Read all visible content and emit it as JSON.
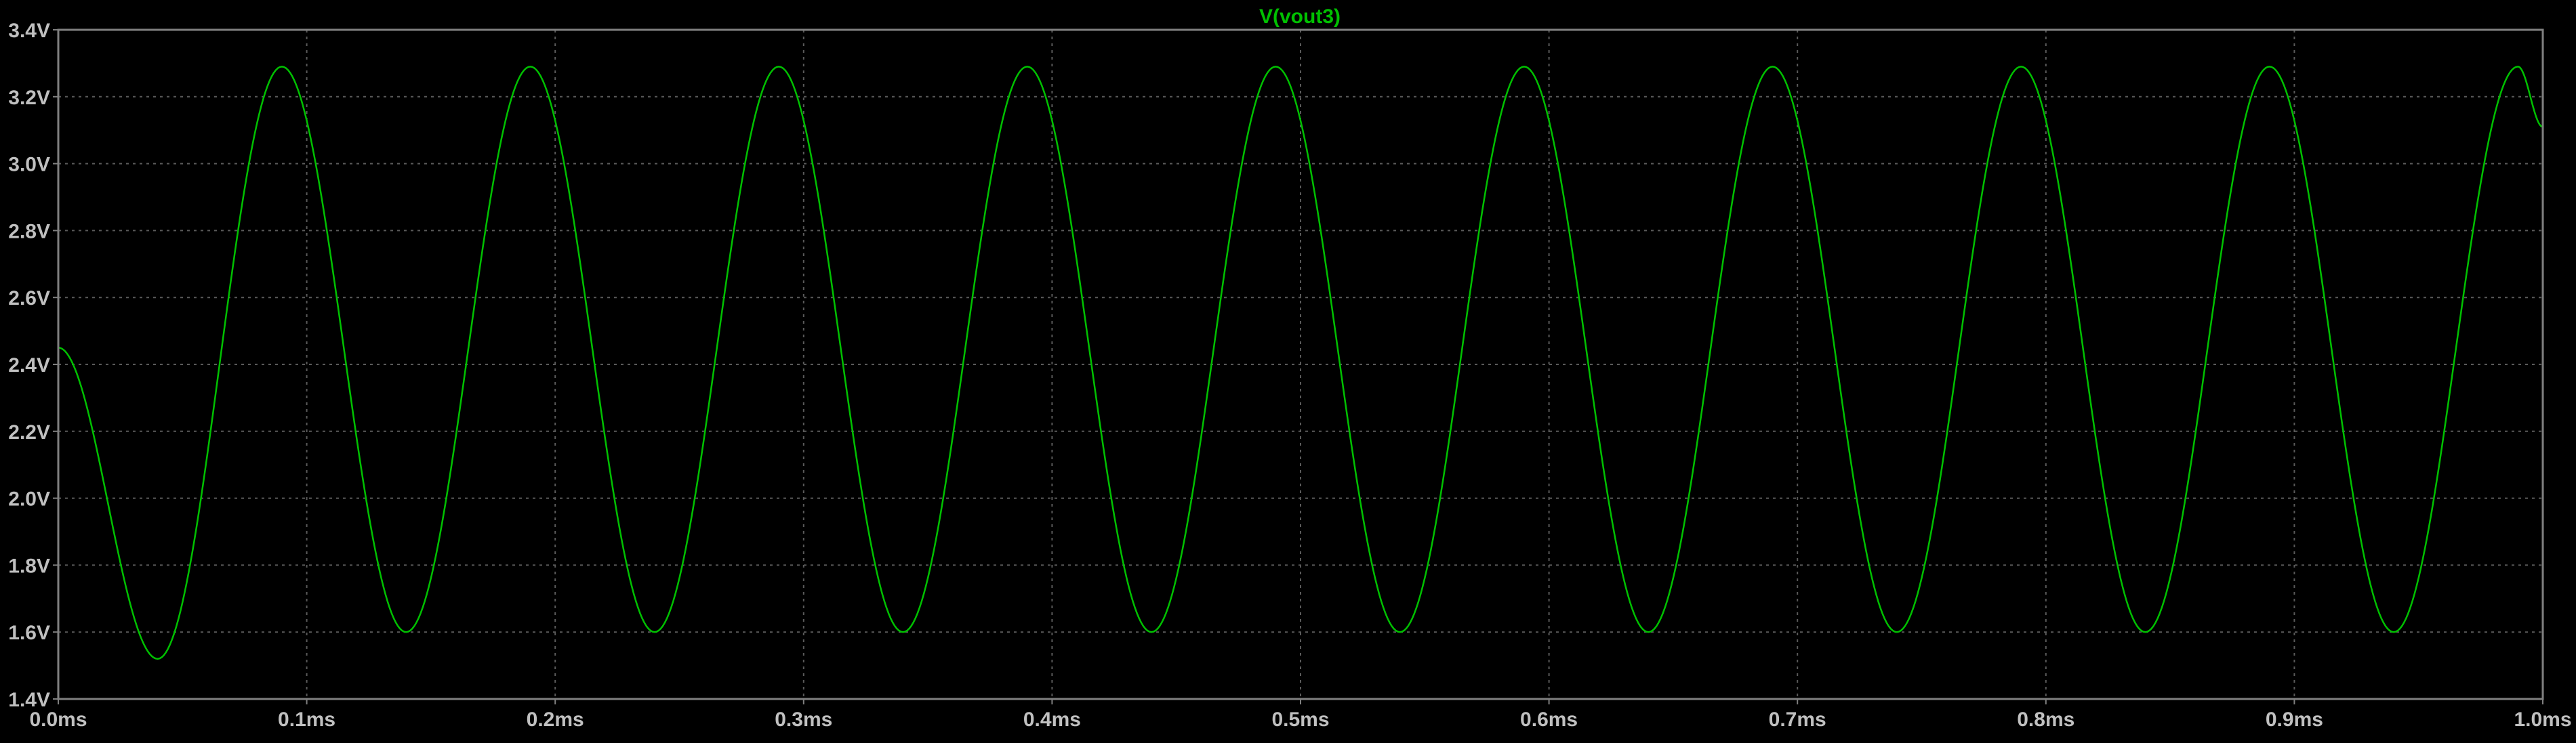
{
  "chart_data": {
    "type": "line",
    "title": "V(vout3)",
    "xlabel": "",
    "ylabel": "",
    "xlim": [
      0.0,
      1.0
    ],
    "ylim": [
      1.4,
      3.4
    ],
    "x_unit": "ms",
    "y_unit": "V",
    "x_ticks": [
      0.0,
      0.1,
      0.2,
      0.3,
      0.4,
      0.5,
      0.6,
      0.7,
      0.8,
      0.9,
      1.0
    ],
    "x_tick_labels": [
      "0.0ms",
      "0.1ms",
      "0.2ms",
      "0.3ms",
      "0.4ms",
      "0.5ms",
      "0.6ms",
      "0.7ms",
      "0.8ms",
      "0.9ms",
      "1.0ms"
    ],
    "y_ticks": [
      1.4,
      1.6,
      1.8,
      2.0,
      2.2,
      2.4,
      2.6,
      2.8,
      3.0,
      3.2,
      3.4
    ],
    "y_tick_labels": [
      "1.4V",
      "1.6V",
      "1.8V",
      "2.0V",
      "2.2V",
      "2.4V",
      "2.6V",
      "2.8V",
      "3.0V",
      "3.2V",
      "3.4V"
    ],
    "grid": true,
    "legend": "none",
    "series": [
      {
        "name": "V(vout3)",
        "color": "#00C000",
        "x": [
          0.0,
          0.04,
          0.09,
          0.14,
          0.19,
          0.24,
          0.29,
          0.34,
          0.39,
          0.44,
          0.49,
          0.54,
          0.59,
          0.64,
          0.69,
          0.74,
          0.79,
          0.84,
          0.89,
          0.94,
          0.99,
          1.0
        ],
        "y": [
          2.45,
          1.52,
          3.29,
          1.6,
          3.29,
          1.6,
          3.29,
          1.6,
          3.29,
          1.6,
          3.29,
          1.6,
          3.29,
          1.6,
          3.29,
          1.6,
          3.29,
          1.6,
          3.29,
          1.6,
          3.29,
          3.11
        ]
      }
    ]
  },
  "colors": {
    "background": "#000000",
    "frame": "#808080",
    "grid": "#5a5a5a",
    "tick_text": "#c0c0c0",
    "trace": "#00C000"
  }
}
